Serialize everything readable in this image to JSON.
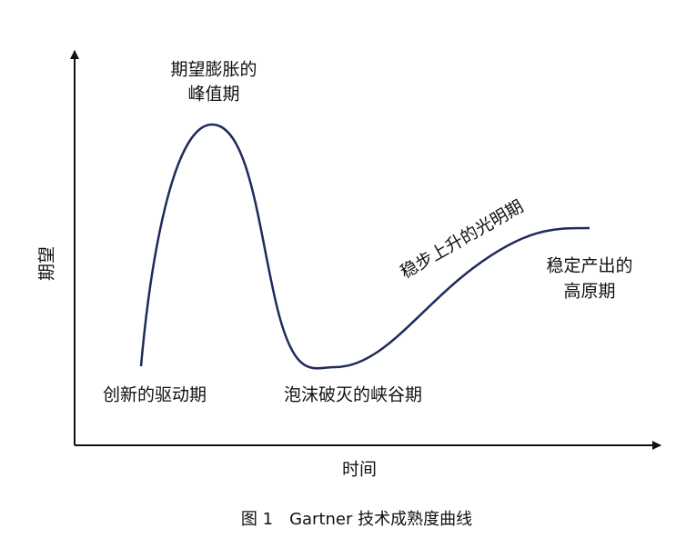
{
  "axes": {
    "y_label": "期望",
    "x_label": "时间"
  },
  "phases": [
    {
      "lines": [
        "期望膨胀的",
        "峰值期"
      ]
    },
    {
      "lines": [
        "稳步上升的光明期"
      ]
    },
    {
      "lines": [
        "稳定产出的",
        "高原期"
      ]
    },
    {
      "lines": [
        "创新的驱动期"
      ]
    },
    {
      "lines": [
        "泡沫破灭的峡谷期"
      ]
    }
  ],
  "caption": "图 1　Gartner 技术成熟度曲线"
}
